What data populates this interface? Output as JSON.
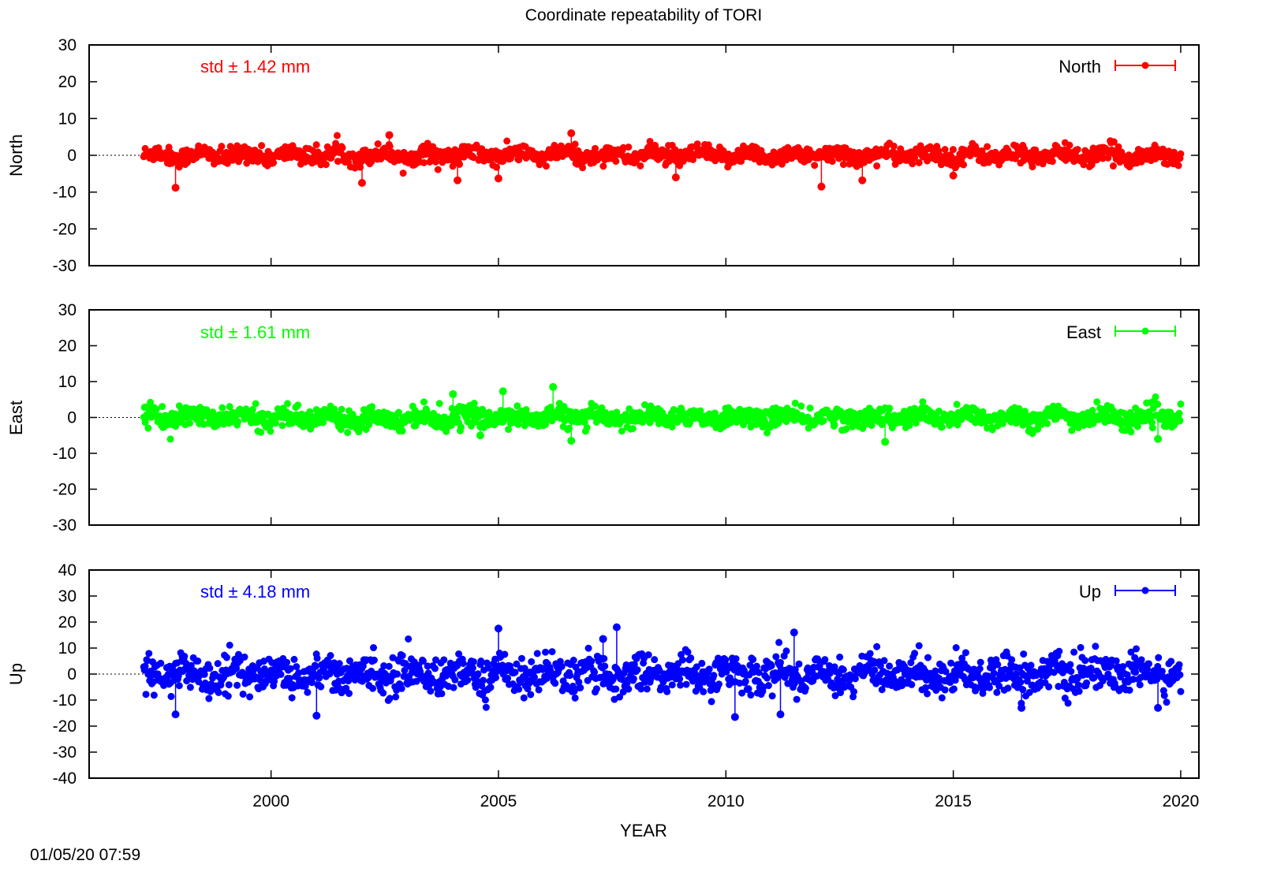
{
  "chart_data": {
    "type": "scatter",
    "title": "Coordinate repeatability of TORI",
    "xlabel": "YEAR",
    "xlim": [
      1996,
      2020.4
    ],
    "x_ticks": [
      2000,
      2005,
      2010,
      2015,
      2020
    ],
    "x_tick_labels": [
      "2000",
      "2005",
      "2010",
      "2015",
      "2020"
    ],
    "x_range_data": [
      1997.2,
      2020.0
    ],
    "timestamp": "01/05/20 07:59",
    "panels": [
      {
        "name": "North",
        "ylabel": "North",
        "legend": "North",
        "color": "#ff0000",
        "std_label": "std ± 1.42 mm",
        "ylim": [
          -30,
          30
        ],
        "y_ticks": [
          30,
          20,
          10,
          0,
          -10,
          -20,
          -30
        ],
        "y_tick_labels": [
          "30",
          "20",
          "10",
          "0",
          "-10",
          "-20",
          "-30"
        ],
        "amplitude": 1.42,
        "outliers": [
          [
            1997.9,
            -8.8
          ],
          [
            2002.0,
            -7.5
          ],
          [
            2002.6,
            5.5
          ],
          [
            2004.1,
            -6.8
          ],
          [
            2005.0,
            -6.3
          ],
          [
            2006.6,
            6.0
          ],
          [
            2008.9,
            -6.0
          ],
          [
            2012.1,
            -8.5
          ],
          [
            2013.0,
            -6.8
          ],
          [
            2015.0,
            -5.5
          ]
        ]
      },
      {
        "name": "East",
        "ylabel": "East",
        "legend": "East",
        "color": "#00ff00",
        "std_label": "std ± 1.61 mm",
        "ylim": [
          -30,
          30
        ],
        "y_ticks": [
          30,
          20,
          10,
          0,
          -10,
          -20,
          -30
        ],
        "y_tick_labels": [
          "30",
          "20",
          "10",
          "0",
          "-10",
          "-20",
          "-30"
        ],
        "amplitude": 1.61,
        "outliers": [
          [
            2004.0,
            6.5
          ],
          [
            2005.1,
            7.3
          ],
          [
            2006.2,
            8.5
          ],
          [
            2006.6,
            -6.5
          ],
          [
            2013.5,
            -6.8
          ],
          [
            2019.5,
            -6.0
          ],
          [
            2004.6,
            -5.0
          ]
        ]
      },
      {
        "name": "Up",
        "ylabel": "Up",
        "legend": "Up",
        "color": "#0000ff",
        "std_label": "std ± 4.18 mm",
        "ylim": [
          -40,
          40
        ],
        "y_ticks": [
          40,
          30,
          20,
          10,
          0,
          -10,
          -20,
          -30,
          -40
        ],
        "y_tick_labels": [
          "40",
          "30",
          "20",
          "10",
          "0",
          "-10",
          "-20",
          "-30",
          "-40"
        ],
        "amplitude": 4.18,
        "outliers": [
          [
            1997.9,
            -15.5
          ],
          [
            2001.0,
            -16.0
          ],
          [
            2005.0,
            17.5
          ],
          [
            2007.6,
            18.0
          ],
          [
            2010.2,
            -16.5
          ],
          [
            2011.2,
            -15.5
          ],
          [
            2011.5,
            16.0
          ],
          [
            2016.5,
            -13.0
          ],
          [
            2019.5,
            -13.0
          ],
          [
            2007.3,
            13.5
          ]
        ]
      }
    ]
  }
}
